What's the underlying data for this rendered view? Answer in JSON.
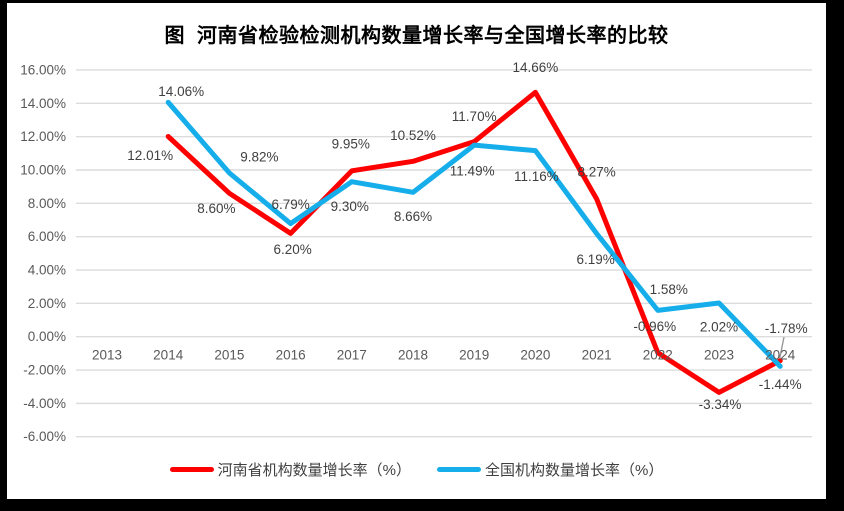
{
  "title": "图  河南省检验检测机构数量增长率与全国增长率的比较",
  "chart_data": {
    "type": "line",
    "title": "图  河南省检验检测机构数量增长率与全国增长率的比较",
    "categories": [
      "2013",
      "2014",
      "2015",
      "2016",
      "2017",
      "2018",
      "2019",
      "2020",
      "2021",
      "2022",
      "2023",
      "2024"
    ],
    "series": [
      {
        "name": "河南省机构数量增长率（%）",
        "color": "#FF0000",
        "values": [
          null,
          12.01,
          8.6,
          6.2,
          9.95,
          10.52,
          11.7,
          14.66,
          8.27,
          -0.96,
          -3.34,
          -1.44
        ],
        "labels": [
          null,
          "12.01%",
          "8.60%",
          "6.20%",
          "9.95%",
          "10.52%",
          "11.70%",
          "14.66%",
          "8.27%",
          "-0.96%",
          "-3.34%",
          "-1.44%"
        ],
        "label_offsets": [
          null,
          [
            -18,
            19
          ],
          [
            -13,
            15
          ],
          [
            2,
            16
          ],
          [
            -1,
            -27
          ],
          [
            0,
            -26
          ],
          [
            0,
            -25
          ],
          [
            0,
            -25
          ],
          [
            0,
            -27
          ],
          [
            -3,
            -26
          ],
          [
            1,
            12
          ],
          [
            0,
            24
          ]
        ]
      },
      {
        "name": "全国机构数量增长率（%）",
        "color": "#16AEEA",
        "values": [
          null,
          14.06,
          9.82,
          6.79,
          9.3,
          8.66,
          11.49,
          11.16,
          6.19,
          1.58,
          2.02,
          -1.78
        ],
        "labels": [
          null,
          "14.06%",
          "9.82%",
          "6.79%",
          "9.30%",
          "8.66%",
          "11.49%",
          "11.16%",
          "6.19%",
          "1.58%",
          "2.02%",
          "-1.78%"
        ],
        "label_offsets": [
          null,
          [
            13,
            -11
          ],
          [
            30,
            -16
          ],
          [
            0,
            -19
          ],
          [
            -2,
            25
          ],
          [
            0,
            24
          ],
          [
            -2,
            26
          ],
          [
            1,
            26
          ],
          [
            -1,
            26
          ],
          [
            11,
            -21
          ],
          [
            0,
            24
          ],
          [
            6,
            -38
          ]
        ]
      }
    ],
    "y_ticks": [
      "16.00%",
      "14.00%",
      "12.00%",
      "10.00%",
      "8.00%",
      "6.00%",
      "4.00%",
      "2.00%",
      "0.00%",
      "-2.00%",
      "-4.00%",
      "-6.00%"
    ],
    "ylim": [
      -6,
      16
    ],
    "y_step": 2,
    "grid": true,
    "legend_position": "bottom",
    "leader_line": {
      "from": [
        784,
        337
      ],
      "to": [
        779,
        362
      ]
    },
    "colors": {
      "gridline": "#DCDCDC",
      "tick_text": "#595959",
      "data_label": "#3F3F3F",
      "leader": "#999999",
      "background": "#FFFFFF",
      "border": "#000000"
    }
  }
}
